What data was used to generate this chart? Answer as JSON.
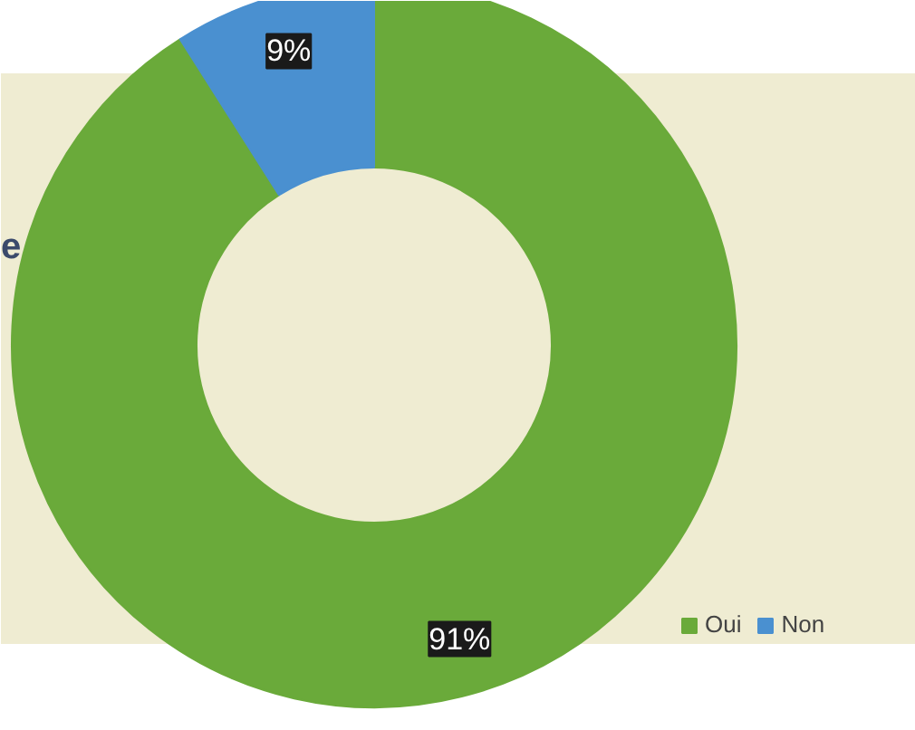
{
  "chart_data": {
    "type": "donut",
    "title": "e",
    "categories": [
      "Oui",
      "Non"
    ],
    "values": [
      91,
      9
    ],
    "colors": [
      "#6aaa3a",
      "#4a90d0"
    ],
    "value_labels": [
      "91%",
      "9%"
    ],
    "legend": "bottom right"
  }
}
